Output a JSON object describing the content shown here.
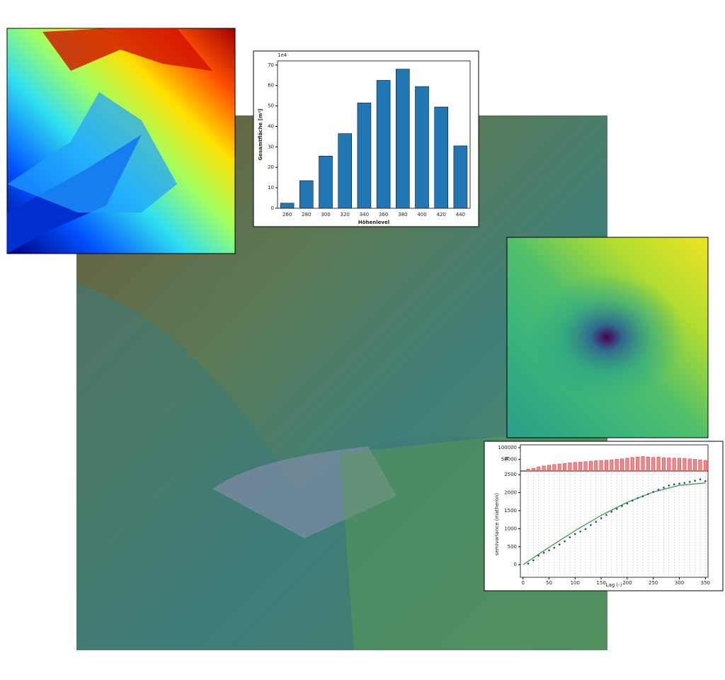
{
  "chart_data": [
    {
      "type": "bar",
      "offset_label": "1e4",
      "ylabel": "Gesamtfläche [m²]",
      "xlabel": "Höhenlevel",
      "categories": [
        "260",
        "280",
        "300",
        "320",
        "340",
        "360",
        "380",
        "400",
        "420",
        "440"
      ],
      "values": [
        2.5,
        13.5,
        25.5,
        36.5,
        51.5,
        62.5,
        68,
        59.5,
        49.5,
        30.5
      ],
      "color": "#1f77b4",
      "ylim": [
        0,
        72
      ],
      "yticks": [
        0,
        10,
        20,
        30,
        40,
        50,
        60,
        70
      ]
    },
    {
      "type": "scatter",
      "xlabel": "Lag (-)",
      "ylabel": "semivariance (matheron)",
      "x": [
        10,
        20,
        30,
        40,
        50,
        60,
        70,
        80,
        90,
        100,
        110,
        120,
        130,
        140,
        150,
        160,
        170,
        180,
        190,
        200,
        210,
        220,
        230,
        240,
        250,
        260,
        270,
        280,
        290,
        300,
        310,
        320,
        330,
        340,
        350
      ],
      "values": [
        30,
        120,
        250,
        330,
        400,
        470,
        560,
        650,
        760,
        850,
        920,
        990,
        1100,
        1190,
        1290,
        1380,
        1470,
        1550,
        1630,
        1700,
        1780,
        1850,
        1900,
        1960,
        2020,
        2080,
        2140,
        2200,
        2230,
        2250,
        2270,
        2300,
        2330,
        2370,
        2320
      ],
      "color": "#1f3fbf",
      "model": {
        "x": [
          0,
          50,
          100,
          150,
          200,
          250,
          300,
          350
        ],
        "values": [
          0,
          483,
          946,
          1370,
          1734,
          2018,
          2204,
          2270
        ],
        "color": "#2ca02c"
      },
      "xlim": [
        -5,
        355
      ],
      "xticks": [
        0,
        50,
        100,
        150,
        200,
        250,
        300,
        350
      ],
      "ylim": [
        -350,
        2600
      ],
      "yticks": [
        0,
        500,
        1000,
        1500,
        2000,
        2500
      ],
      "counts": {
        "ylabel": "N",
        "color": "#e8383a",
        "values": [
          8000,
          12000,
          18000,
          22000,
          25000,
          28000,
          30000,
          32000,
          35000,
          37000,
          38000,
          40000,
          42000,
          44000,
          45000,
          46000,
          48000,
          50000,
          52000,
          55000,
          58000,
          60000,
          62000,
          60000,
          58000,
          60000,
          57000,
          56000,
          55000,
          55000,
          54000,
          52000,
          50000,
          48000,
          45000
        ],
        "ylim": [
          0,
          112000
        ],
        "yticks": [
          50000,
          100000
        ]
      }
    }
  ]
}
